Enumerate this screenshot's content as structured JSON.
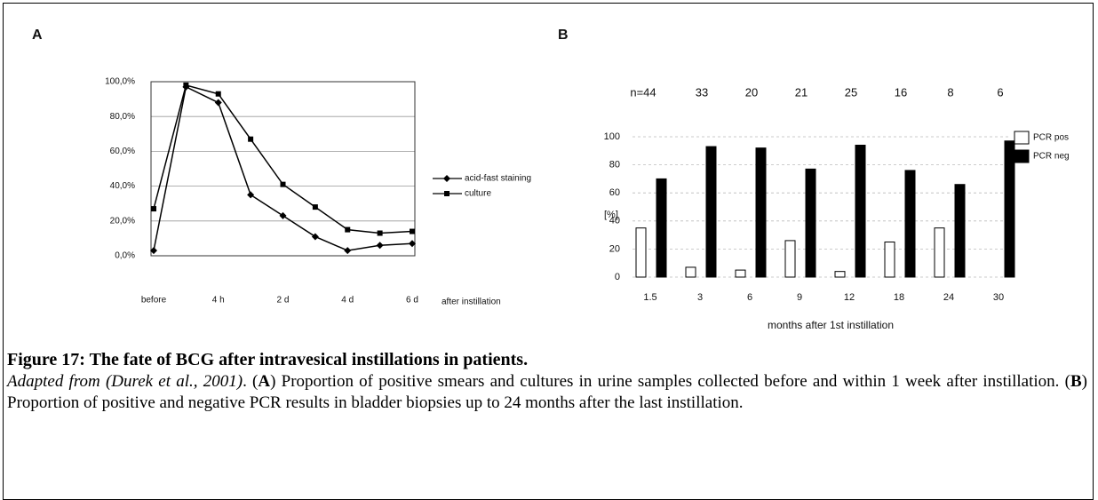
{
  "chart_data": [
    {
      "type": "line",
      "panel": "A",
      "categories": [
        "before",
        null,
        "4 h",
        null,
        "2 d",
        null,
        "4 d",
        null,
        "6 d"
      ],
      "series": [
        {
          "name": "acid-fast staining",
          "color": "#000000",
          "marker": "diamond",
          "values": [
            3,
            97,
            88,
            35,
            23,
            11,
            3,
            6,
            7
          ]
        },
        {
          "name": "culture",
          "color": "#000000",
          "marker": "square",
          "values": [
            27,
            98,
            93,
            67,
            41,
            28,
            15,
            13,
            14
          ]
        }
      ],
      "x_label": "after instillation",
      "ylim": [
        0,
        100
      ],
      "yticks": [
        {
          "value": 0,
          "label": "0,0%"
        },
        {
          "value": 20,
          "label": "20,0%"
        },
        {
          "value": 40,
          "label": "40,0%"
        },
        {
          "value": 60,
          "label": "60,0%"
        },
        {
          "value": 80,
          "label": "80,0%"
        },
        {
          "value": 100,
          "label": "100,0%"
        }
      ],
      "grid": true,
      "legend": "right"
    },
    {
      "type": "bar",
      "panel": "B",
      "categories": [
        "1.5",
        "3",
        "6",
        "9",
        "12",
        "18",
        "24",
        "30"
      ],
      "annotations": [
        "n=44",
        "33",
        "20",
        "21",
        "25",
        "16",
        "8",
        "6"
      ],
      "series": [
        {
          "name": "PCR pos",
          "color": "#ffffff",
          "values": [
            35,
            7,
            5,
            26,
            4,
            25,
            35,
            0
          ]
        },
        {
          "name": "PCR neg",
          "color": "#000000",
          "values": [
            70,
            93,
            92,
            77,
            94,
            76,
            66,
            97
          ]
        }
      ],
      "x_label": "months after 1st instillation",
      "y_label": "[%]",
      "ylim": [
        0,
        100
      ],
      "yticks": [
        0,
        20,
        40,
        60,
        80,
        100
      ],
      "grid": true,
      "legend": "top right"
    }
  ],
  "caption": {
    "title": "Figure 17: The fate of BCG after intravesical instillations in patients.",
    "segments": [
      "Adapted from (Durek et al., 2001)",
      ". (",
      "A",
      ") Proportion of positive smears and cultures in urine samples collected before and within 1 week after instillation. (",
      "B",
      ") Proportion of positive and negative PCR results in bladder biopsies  up to 24 months after the last instillation."
    ]
  }
}
